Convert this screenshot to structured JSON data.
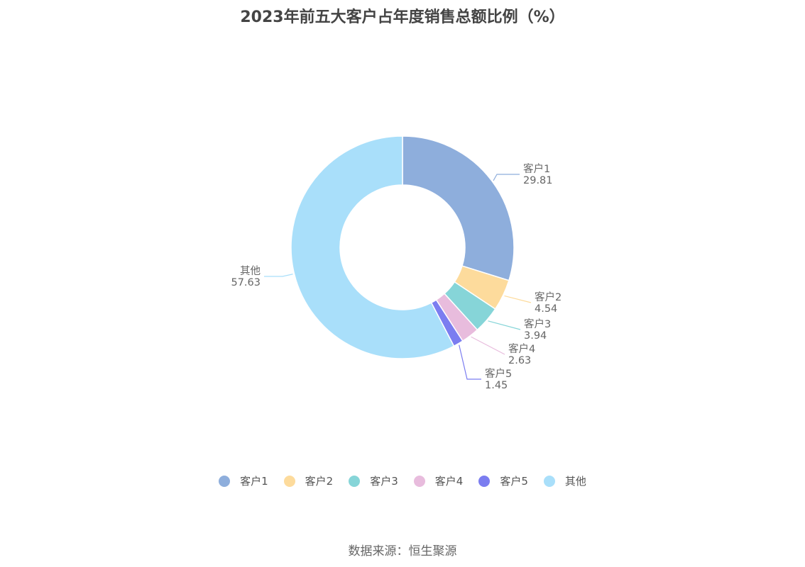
{
  "chart_data": {
    "type": "pie",
    "title": "2023年前五大客户占年度销售总额比例（%）",
    "slices": [
      {
        "name": "客户1",
        "value": 29.81,
        "label": "29.81",
        "color": "#8eaedc"
      },
      {
        "name": "客户2",
        "value": 4.54,
        "label": "4.54",
        "color": "#fddb9c"
      },
      {
        "name": "客户3",
        "value": 3.94,
        "label": "3.94",
        "color": "#86d5d8"
      },
      {
        "name": "客户4",
        "value": 2.63,
        "label": "2.63",
        "color": "#e8bcdd"
      },
      {
        "name": "客户5",
        "value": 1.45,
        "label": "1.45",
        "color": "#7b7df0"
      },
      {
        "name": "其他",
        "value": 57.63,
        "label": "57.63",
        "color": "#a9dffa"
      }
    ],
    "legend_position": "bottom"
  },
  "footer": {
    "source": "数据来源：恒生聚源"
  }
}
